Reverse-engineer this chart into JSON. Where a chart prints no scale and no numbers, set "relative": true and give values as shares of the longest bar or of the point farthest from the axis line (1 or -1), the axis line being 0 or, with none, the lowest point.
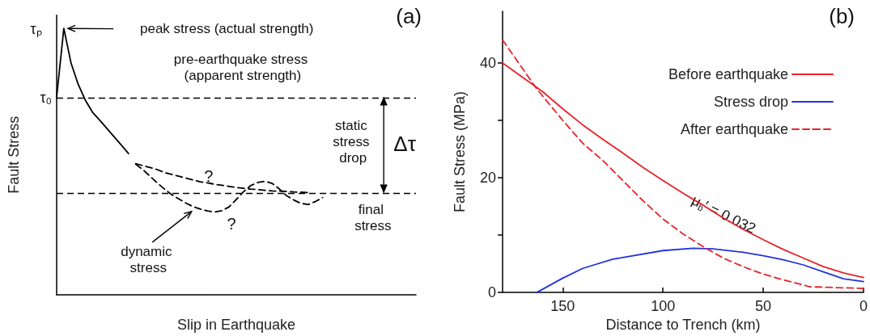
{
  "chart_data": [
    {
      "type": "line",
      "title": "(a)",
      "xlabel": "Slip in Earthquake",
      "ylabel": "Fault Stress",
      "relative": true,
      "marker": "none",
      "categories": [
        null,
        null,
        null,
        null,
        null,
        null,
        null,
        null,
        null,
        null,
        null,
        null,
        null,
        null,
        null,
        null,
        null,
        null,
        null,
        null,
        null,
        null,
        null,
        null,
        null,
        null,
        null,
        null,
        null,
        null,
        null,
        null,
        null,
        null,
        null,
        null,
        null,
        null,
        null,
        null,
        null,
        null,
        null,
        null,
        null,
        null,
        null,
        null,
        null,
        null,
        null
      ],
      "series": [
        {
          "color": "#000000",
          "line_style": "solid",
          "values": [
            0.742,
            1,
            0.87,
            0.79,
            0.73,
            0.685,
            0.655,
            0.624,
            0.593,
            0.562,
            0.53,
            null,
            null,
            null,
            null,
            null,
            null,
            null,
            null,
            null,
            null,
            null,
            null,
            null,
            null,
            null,
            null,
            null,
            null,
            null,
            null,
            null,
            null,
            null,
            null,
            null,
            null,
            null,
            null,
            null,
            null,
            null,
            null,
            null,
            null,
            null,
            null,
            null,
            null,
            null,
            null
          ]
        },
        {
          "color": "#000000",
          "line_style": "dashed",
          "values": [
            null,
            null,
            null,
            null,
            null,
            null,
            null,
            null,
            null,
            null,
            null,
            0.492,
            0.485,
            0.478,
            0.47,
            0.459,
            0.452,
            0.445,
            0.438,
            0.431,
            0.424,
            0.42,
            0.415,
            0.411,
            0.407,
            0.403,
            0.4,
            0.397,
            0.395,
            0.392,
            0.39,
            0.389,
            0.388,
            0.386,
            0.385,
            0.384,
            null,
            null,
            null,
            null,
            null,
            null,
            null,
            null,
            null,
            null,
            null,
            null,
            null,
            null,
            null
          ]
        },
        {
          "color": "#000000",
          "line_style": "dashed",
          "values": [
            null,
            null,
            null,
            null,
            null,
            null,
            null,
            null,
            null,
            null,
            null,
            0.49,
            0.47,
            0.445,
            0.42,
            0.397,
            0.376,
            0.36,
            0.344,
            0.331,
            0.322,
            0.315,
            0.311,
            0.316,
            0.33,
            0.358,
            0.387,
            0.41,
            0.422,
            0.426,
            0.418,
            0.397,
            0.372,
            0.356,
            0.343,
            0.339,
            0.35,
            0.365,
            null,
            null,
            null,
            null,
            null,
            null,
            null,
            null,
            null,
            null,
            null,
            null,
            null
          ]
        }
      ],
      "ref_lines": [
        {
          "axis": "y",
          "value": 0.742,
          "label": "τ₀",
          "color": "#000000",
          "line_style": "dashed"
        },
        {
          "axis": "y",
          "value": 0.383,
          "color": "#000000",
          "line_style": "dashed"
        }
      ],
      "annotations": [
        "τₚ",
        "peak stress (actual strength)",
        "pre-earthquake stress (apparent strength)",
        "static stress drop",
        "Δτ",
        "dynamic stress",
        "?",
        "?",
        "final stress"
      ]
    },
    {
      "type": "line",
      "title": "(b)",
      "xlabel": "Distance to Trench (km)",
      "ylabel": "Fault Stress (MPa)",
      "xlim": [
        180,
        0
      ],
      "ylim": [
        0,
        49
      ],
      "xticks": [
        150,
        100,
        50,
        0
      ],
      "yticks": [
        0,
        {
          "value": 10,
          "label": null
        },
        20,
        {
          "value": 30,
          "label": null
        },
        40
      ],
      "legend": "top right",
      "marker": "none",
      "series": [
        {
          "name": "Before earthquake",
          "color": "#e8222a",
          "line_style": "solid",
          "x": [
            180,
            170,
            160,
            150,
            140,
            130,
            120,
            110,
            100,
            90,
            80,
            70,
            60,
            50,
            40,
            30,
            20,
            10,
            0
          ],
          "values": [
            40,
            37.5,
            35,
            32,
            29.2,
            26.7,
            24.3,
            21.8,
            19.5,
            17.3,
            15.2,
            13,
            11,
            9.2,
            7.5,
            6,
            4.5,
            3.4,
            2.6
          ]
        },
        {
          "name": "Stress drop",
          "color": "#2233dd",
          "line_style": "solid",
          "x": [
            163,
            150,
            140,
            125,
            100,
            85,
            75,
            60,
            50,
            40,
            30,
            20,
            10,
            0
          ],
          "values": [
            0,
            2.5,
            4.2,
            5.8,
            7.3,
            7.7,
            7.6,
            7,
            6.4,
            5.7,
            4.8,
            3.6,
            2.4,
            1.9
          ]
        },
        {
          "name": "After earthquake",
          "color": "#e8222a",
          "line_style": "dashed",
          "x": [
            180,
            170,
            163,
            150,
            140,
            130,
            120,
            110,
            100,
            90,
            80,
            70,
            60,
            50,
            40,
            30,
            27,
            0
          ],
          "values": [
            44,
            39,
            35.5,
            30,
            26,
            23,
            19.5,
            16,
            12.8,
            10.2,
            8,
            6,
            4.5,
            3.2,
            2.2,
            1.3,
            1,
            0.7
          ]
        }
      ],
      "annotations": [
        "μ$_{b}$′ = 0.032"
      ]
    }
  ]
}
